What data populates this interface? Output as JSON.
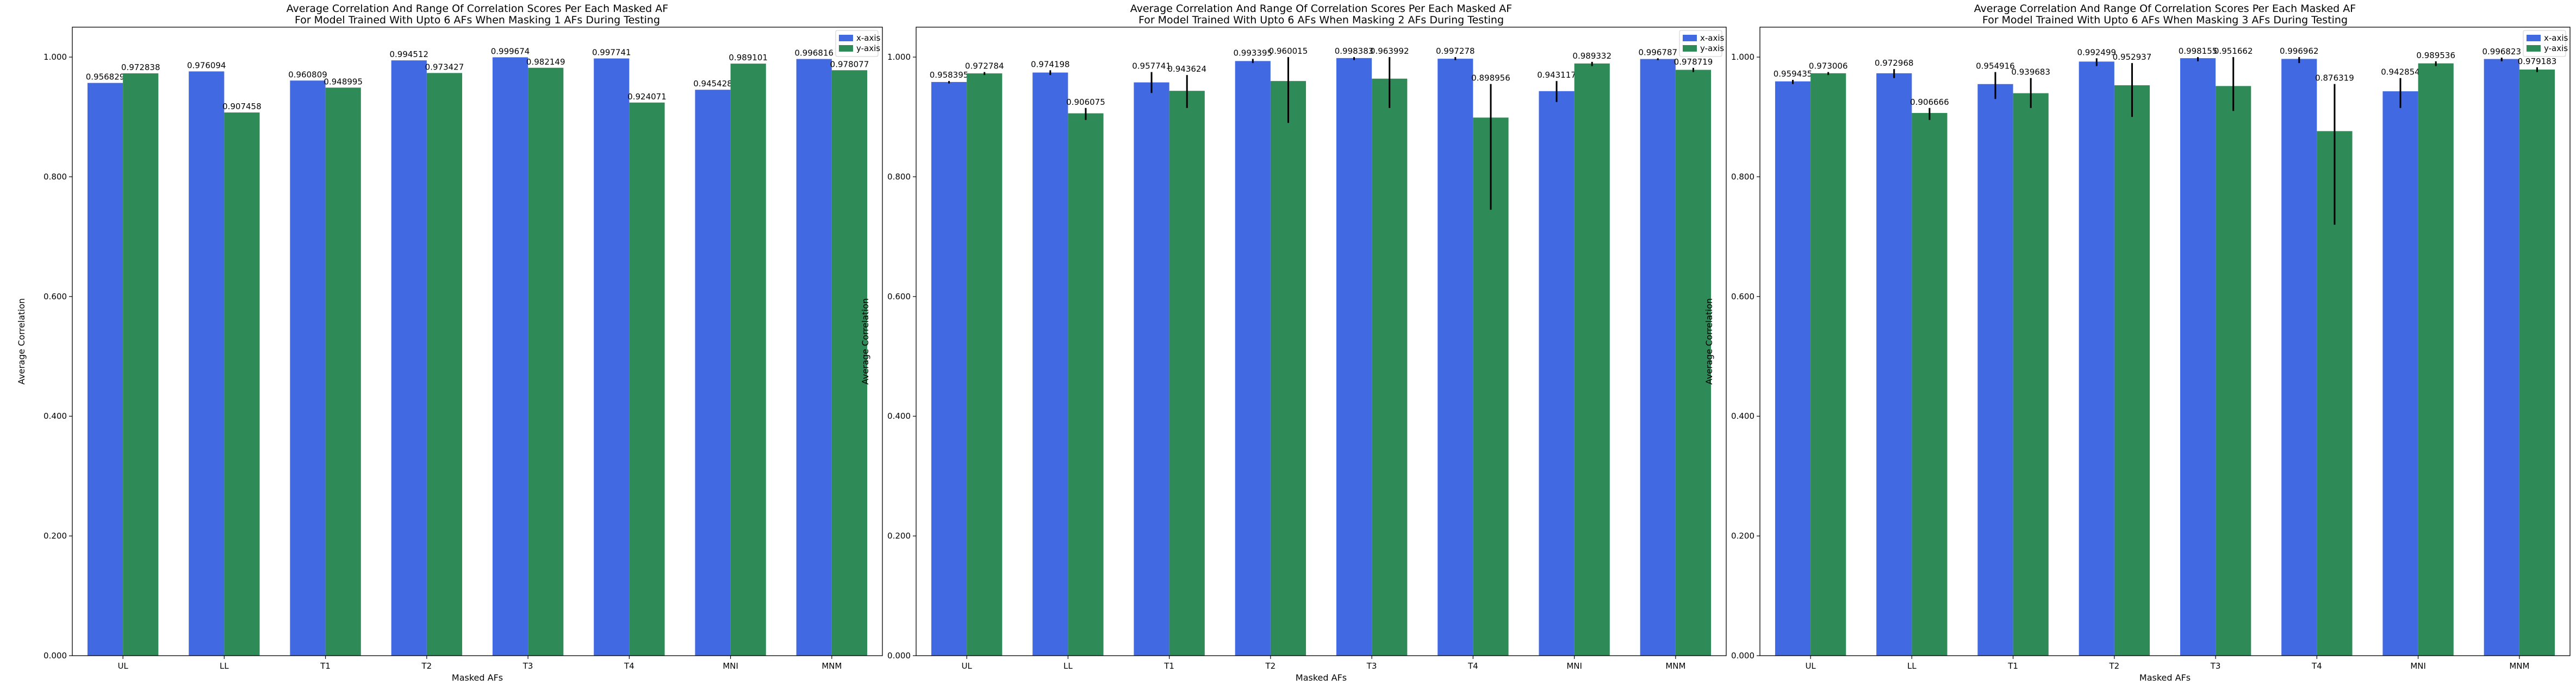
{
  "colors": {
    "x_axis": "#4169e1",
    "y_axis": "#2e8b57",
    "error": "#000000"
  },
  "chart_data": [
    {
      "type": "bar",
      "title": [
        "Average Correlation And Range Of Correlation Scores Per Each Masked AF",
        "For Model Trained With Upto 6 AFs When Masking 1 AFs During Testing"
      ],
      "xlabel": "Masked AFs",
      "ylabel": "Average Correlation",
      "ylim": [
        0,
        1.05
      ],
      "yticks": [
        "0.000",
        "0.200",
        "0.400",
        "0.600",
        "0.800",
        "1.000"
      ],
      "legend_position": "top-right",
      "categories": [
        "UL",
        "LL",
        "T1",
        "T2",
        "T3",
        "T4",
        "MNI",
        "MNM"
      ],
      "series": [
        {
          "name": "x-axis",
          "values": [
            0.956829,
            0.976094,
            0.960809,
            0.994512,
            0.999674,
            0.997741,
            0.945428,
            0.996816
          ],
          "labels": [
            "0.956829",
            "0.976094",
            "0.960809",
            "0.994512",
            "0.999674",
            "0.997741",
            "0.945428",
            "0.996816"
          ],
          "err_low": [
            0.956829,
            0.976094,
            0.960809,
            0.994512,
            0.999674,
            0.997741,
            0.945428,
            0.996816
          ],
          "err_high": [
            0.956829,
            0.976094,
            0.960809,
            0.994512,
            0.999674,
            0.997741,
            0.945428,
            0.996816
          ]
        },
        {
          "name": "y-axis",
          "values": [
            0.972838,
            0.907458,
            0.948995,
            0.973427,
            0.982149,
            0.924071,
            0.989101,
            0.978077
          ],
          "labels": [
            "0.972838",
            "0.907458",
            "0.948995",
            "0.973427",
            "0.982149",
            "0.924071",
            "0.989101",
            "0.978077"
          ],
          "err_low": [
            0.972838,
            0.907458,
            0.948995,
            0.973427,
            0.982149,
            0.924071,
            0.989101,
            0.978077
          ],
          "err_high": [
            0.972838,
            0.907458,
            0.948995,
            0.973427,
            0.982149,
            0.924071,
            0.989101,
            0.978077
          ]
        }
      ]
    },
    {
      "type": "bar",
      "title": [
        "Average Correlation And Range Of Correlation Scores Per Each Masked AF",
        "For Model Trained With Upto 6 AFs When Masking 2 AFs During Testing"
      ],
      "xlabel": "Masked AFs",
      "ylabel": "Average Correlation",
      "ylim": [
        0,
        1.05
      ],
      "yticks": [
        "0.000",
        "0.200",
        "0.400",
        "0.600",
        "0.800",
        "1.000"
      ],
      "legend_position": "top-right",
      "categories": [
        "UL",
        "LL",
        "T1",
        "T2",
        "T3",
        "T4",
        "MNI",
        "MNM"
      ],
      "series": [
        {
          "name": "x-axis",
          "values": [
            0.958395,
            0.974198,
            0.957741,
            0.993395,
            0.998383,
            0.997278,
            0.943117,
            0.996787
          ],
          "labels": [
            "0.958395",
            "0.974198",
            "0.957741",
            "0.993395",
            "0.998383",
            "0.997278",
            "0.943117",
            "0.996787"
          ],
          "err_low": [
            0.956,
            0.97,
            0.94,
            0.99,
            0.995,
            0.995,
            0.925,
            0.995
          ],
          "err_high": [
            0.96,
            0.978,
            0.975,
            0.997,
            1.0,
            1.0,
            0.96,
            0.998
          ]
        },
        {
          "name": "y-axis",
          "values": [
            0.972784,
            0.906075,
            0.943624,
            0.960015,
            0.963992,
            0.898956,
            0.989332,
            0.978719
          ],
          "labels": [
            "0.972784",
            "0.906075",
            "0.943624",
            "0.960015",
            "0.963992",
            "0.898956",
            "0.989332",
            "0.978719"
          ],
          "err_low": [
            0.97,
            0.895,
            0.915,
            0.89,
            0.915,
            0.745,
            0.985,
            0.975
          ],
          "err_high": [
            0.975,
            0.915,
            0.97,
            1.0,
            1.0,
            0.955,
            0.992,
            0.982
          ]
        }
      ]
    },
    {
      "type": "bar",
      "title": [
        "Average Correlation And Range Of Correlation Scores Per Each Masked AF",
        "For Model Trained With Upto 6 AFs When Masking 3 AFs During Testing"
      ],
      "xlabel": "Masked AFs",
      "ylabel": "Average Correlation",
      "ylim": [
        0,
        1.05
      ],
      "yticks": [
        "0.000",
        "0.200",
        "0.400",
        "0.600",
        "0.800",
        "1.000"
      ],
      "legend_position": "top-right",
      "categories": [
        "UL",
        "LL",
        "T1",
        "T2",
        "T3",
        "T4",
        "MNI",
        "MNM"
      ],
      "series": [
        {
          "name": "x-axis",
          "values": [
            0.959435,
            0.972968,
            0.954916,
            0.992499,
            0.998155,
            0.996962,
            0.942854,
            0.996823
          ],
          "labels": [
            "0.959435",
            "0.972968",
            "0.954916",
            "0.992499",
            "0.998155",
            "0.996962",
            "0.942854",
            "0.996823"
          ],
          "err_low": [
            0.955,
            0.965,
            0.93,
            0.985,
            0.993,
            0.99,
            0.915,
            0.993
          ],
          "err_high": [
            0.962,
            0.98,
            0.975,
            0.998,
            1.0,
            1.0,
            0.965,
            0.999
          ]
        },
        {
          "name": "y-axis",
          "values": [
            0.973006,
            0.906666,
            0.939683,
            0.952937,
            0.951662,
            0.876319,
            0.989536,
            0.979183
          ],
          "labels": [
            "0.973006",
            "0.906666",
            "0.939683",
            "0.952937",
            "0.951662",
            "0.876319",
            "0.989536",
            "0.979183"
          ],
          "err_low": [
            0.97,
            0.895,
            0.915,
            0.9,
            0.91,
            0.72,
            0.985,
            0.975
          ],
          "err_high": [
            0.975,
            0.915,
            0.965,
            0.99,
            1.0,
            0.955,
            0.993,
            0.983
          ]
        }
      ]
    }
  ]
}
